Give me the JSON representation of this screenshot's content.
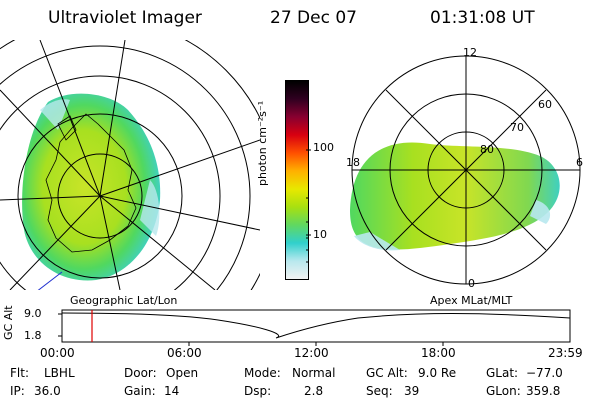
{
  "header": {
    "instrument": "Ultraviolet Imager",
    "date": "27 Dec 07",
    "time": "01:31:08 UT"
  },
  "colorbar": {
    "unit_label": "photon cm⁻²s⁻¹",
    "ticks": [
      "100",
      "10"
    ],
    "scale": "log",
    "stops": [
      "#f2f2f2",
      "#b8e8ee",
      "#30d0cc",
      "#60d860",
      "#a8e010",
      "#e8e800",
      "#ffb000",
      "#ff5000",
      "#d80010",
      "#880030",
      "#300020",
      "#000000"
    ]
  },
  "left_panel": {
    "caption": "Geographic Lat/Lon"
  },
  "right_panel": {
    "caption": "Apex MLat/MLT",
    "mlt_labels": {
      "top": "12",
      "left": "18",
      "right": "6",
      "bottom": "0"
    },
    "mlat_labels": [
      "60",
      "70",
      "80"
    ]
  },
  "altitude_plot": {
    "y_label": "GC Alt",
    "y_ticks": [
      "9.0",
      "1.8"
    ],
    "x_ticks": [
      "00:00",
      "06:00",
      "12:00",
      "18:00",
      "23:59"
    ],
    "cursor_color": "#e00000"
  },
  "status": {
    "flt_label": "Flt:",
    "flt_value": "LBHL",
    "door_label": "Door:",
    "door_value": "Open",
    "mode_label": "Mode:",
    "mode_value": "Normal",
    "gcalt_label": "GC Alt:",
    "gcalt_value": "9.0 Re",
    "glat_label": "GLat:",
    "glat_value": "−77.0",
    "ip_label": "IP:",
    "ip_value": "36.0",
    "gain_label": "Gain:",
    "gain_value": "14",
    "dsp_label": "Dsp:",
    "dsp_value": "2.8",
    "seq_label": "Seq:",
    "seq_value": "39",
    "glon_label": "GLon:",
    "glon_value": "359.8"
  }
}
